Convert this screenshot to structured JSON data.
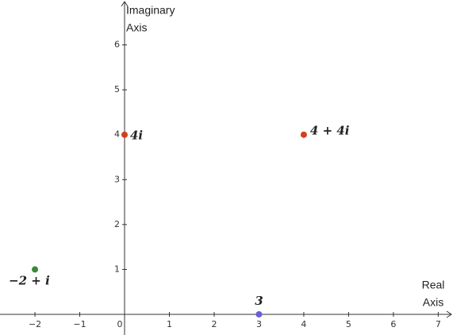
{
  "chart_data": {
    "type": "scatter",
    "x_label": [
      "Real",
      "Axis"
    ],
    "y_label": [
      "Imaginary",
      "Axis"
    ],
    "xlim": [
      -2.78,
      7.33
    ],
    "ylim": [
      -0.46,
      7.0
    ],
    "xticks": [
      {
        "value": -2,
        "label": "−2"
      },
      {
        "value": -1,
        "label": "−1"
      },
      0,
      1,
      2,
      3,
      4,
      5,
      6,
      7
    ],
    "yticks": [
      1,
      2,
      3,
      4,
      5,
      6
    ],
    "points": [
      {
        "x": -2,
        "y": 1,
        "label": "−2 + i",
        "color": "#3a8a3a"
      },
      {
        "x": 0,
        "y": 4,
        "label": "4i",
        "color": "#d2401e"
      },
      {
        "x": 4,
        "y": 4,
        "label": "4 + 4i",
        "color": "#d2401e"
      },
      {
        "x": 3,
        "y": 0,
        "label": "3",
        "color": "#6a5fd6"
      }
    ]
  }
}
